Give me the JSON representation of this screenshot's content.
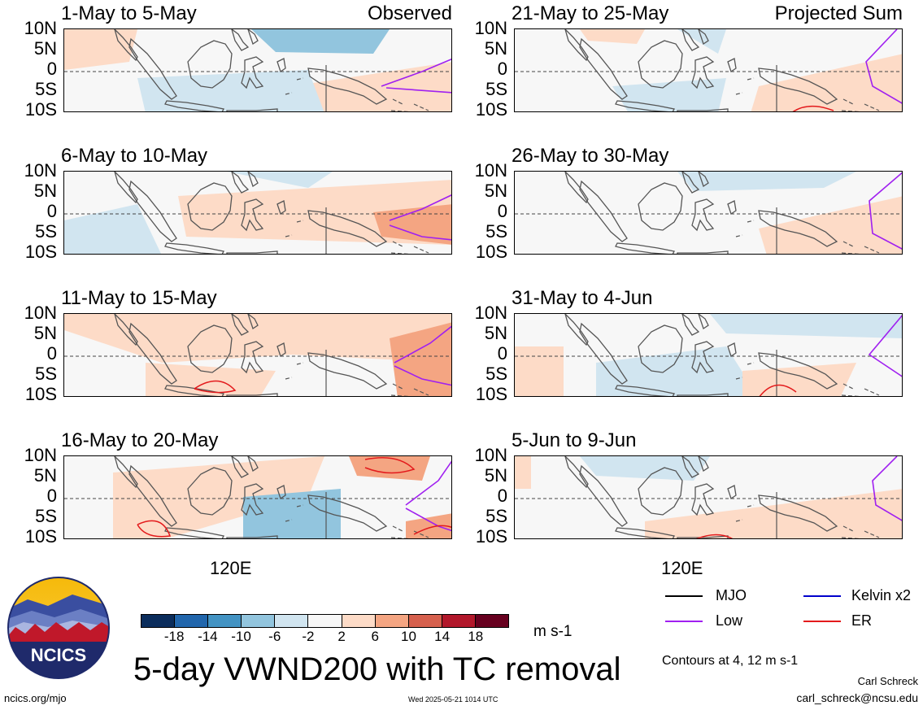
{
  "panels": [
    {
      "id": "p1",
      "title": "1-May to 5-May",
      "tag": "Observed",
      "col": 0,
      "row": 0
    },
    {
      "id": "p2",
      "title": "6-May to 10-May",
      "tag": "",
      "col": 0,
      "row": 1
    },
    {
      "id": "p3",
      "title": "11-May to 15-May",
      "tag": "",
      "col": 0,
      "row": 2
    },
    {
      "id": "p4",
      "title": "16-May to 20-May",
      "tag": "",
      "col": 0,
      "row": 3
    },
    {
      "id": "p5",
      "title": "21-May to 25-May",
      "tag": "Projected Sum",
      "col": 1,
      "row": 0
    },
    {
      "id": "p6",
      "title": "26-May to 30-May",
      "tag": "",
      "col": 1,
      "row": 1
    },
    {
      "id": "p7",
      "title": "31-May to 4-Jun",
      "tag": "",
      "col": 1,
      "row": 2
    },
    {
      "id": "p8",
      "title": "5-Jun to 9-Jun",
      "tag": "",
      "col": 1,
      "row": 3
    }
  ],
  "lat_labels": [
    "10N",
    "5N",
    "0",
    "5S",
    "10S"
  ],
  "lon_label": "120E",
  "colorbar": {
    "colors": [
      "#0b2d5c",
      "#2166ac",
      "#4393c3",
      "#92c5de",
      "#d1e5f0",
      "#f7f7f7",
      "#fddbc7",
      "#f4a582",
      "#d6604d",
      "#b2182b",
      "#67001f"
    ],
    "labels": [
      "-18",
      "-14",
      "-10",
      "-6",
      "-2",
      "2",
      "6",
      "10",
      "14",
      "18"
    ],
    "units": "m s-1"
  },
  "legend": {
    "items": [
      {
        "label": "MJO",
        "color": "#000000"
      },
      {
        "label": "Kelvin x2",
        "color": "#0000cc"
      },
      {
        "label": "Low",
        "color": "#a020f0"
      },
      {
        "label": "ER",
        "color": "#e31a1c"
      }
    ],
    "contours_note": "Contours at 4, 12 m s-1"
  },
  "main_title": "5-day VWND200 with TC removal",
  "logo_text": "NCICS",
  "footer": {
    "left": "ncics.org/mjo",
    "center": "Wed 2025-05-21 1014 UTC",
    "author": "Carl Schreck",
    "email": "carl_schreck@ncsu.edu"
  }
}
